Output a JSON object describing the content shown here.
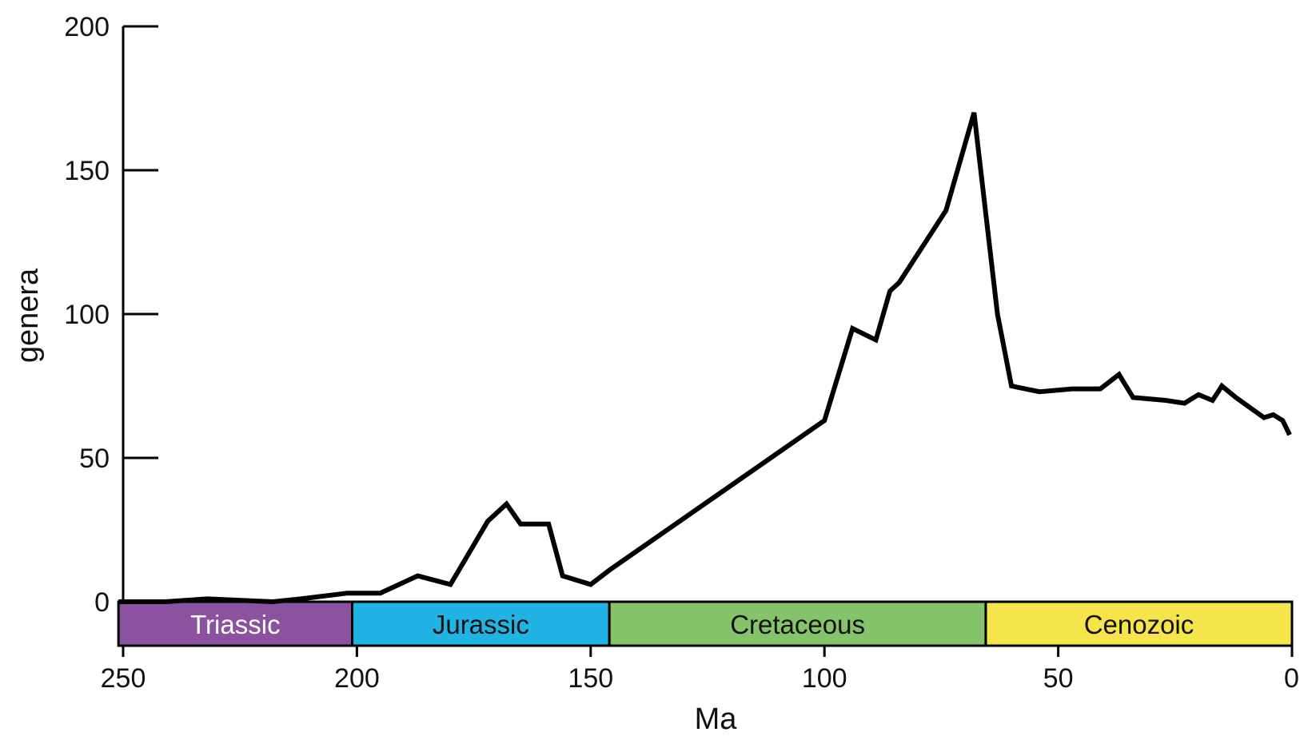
{
  "chart_data": {
    "type": "line",
    "title": "",
    "xlabel": "Ma",
    "ylabel": "genera",
    "xlim": [
      250,
      0
    ],
    "ylim": [
      0,
      200
    ],
    "x_ticks": [
      250,
      200,
      150,
      100,
      50,
      0
    ],
    "y_ticks": [
      0,
      50,
      100,
      150,
      200
    ],
    "grid": false,
    "series": [
      {
        "color": "#000000",
        "points": [
          [
            251,
            0
          ],
          [
            241,
            0
          ],
          [
            232,
            1
          ],
          [
            218,
            0
          ],
          [
            212,
            1
          ],
          [
            202,
            3
          ],
          [
            195,
            3
          ],
          [
            187,
            9
          ],
          [
            180,
            6
          ],
          [
            172,
            28
          ],
          [
            168,
            34
          ],
          [
            165,
            27
          ],
          [
            159,
            27
          ],
          [
            156,
            9
          ],
          [
            150,
            6
          ],
          [
            146,
            11
          ],
          [
            100,
            63
          ],
          [
            94,
            95
          ],
          [
            89,
            91
          ],
          [
            86,
            108
          ],
          [
            84,
            111
          ],
          [
            74,
            136
          ],
          [
            68,
            170
          ],
          [
            63,
            100
          ],
          [
            60,
            75
          ],
          [
            54,
            73
          ],
          [
            47,
            74
          ],
          [
            41,
            74
          ],
          [
            37,
            79
          ],
          [
            34,
            71
          ],
          [
            27,
            70
          ],
          [
            23,
            69
          ],
          [
            20,
            72
          ],
          [
            17,
            70
          ],
          [
            15,
            75
          ],
          [
            12,
            71
          ],
          [
            6,
            64
          ],
          [
            4,
            65
          ],
          [
            2,
            63
          ],
          [
            0.5,
            58
          ]
        ]
      }
    ],
    "periods": [
      {
        "name": "Triassic",
        "start": 251,
        "end": 201,
        "color": "#8B539F",
        "text_color": "#ffffff"
      },
      {
        "name": "Jurassic",
        "start": 201,
        "end": 146,
        "color": "#1FB4E3",
        "text_color": "#111111"
      },
      {
        "name": "Cretaceous",
        "start": 146,
        "end": 65.5,
        "color": "#86C46B",
        "text_color": "#111111"
      },
      {
        "name": "Cenozoic",
        "start": 65.5,
        "end": 0,
        "color": "#F5E54A",
        "text_color": "#111111"
      }
    ]
  }
}
